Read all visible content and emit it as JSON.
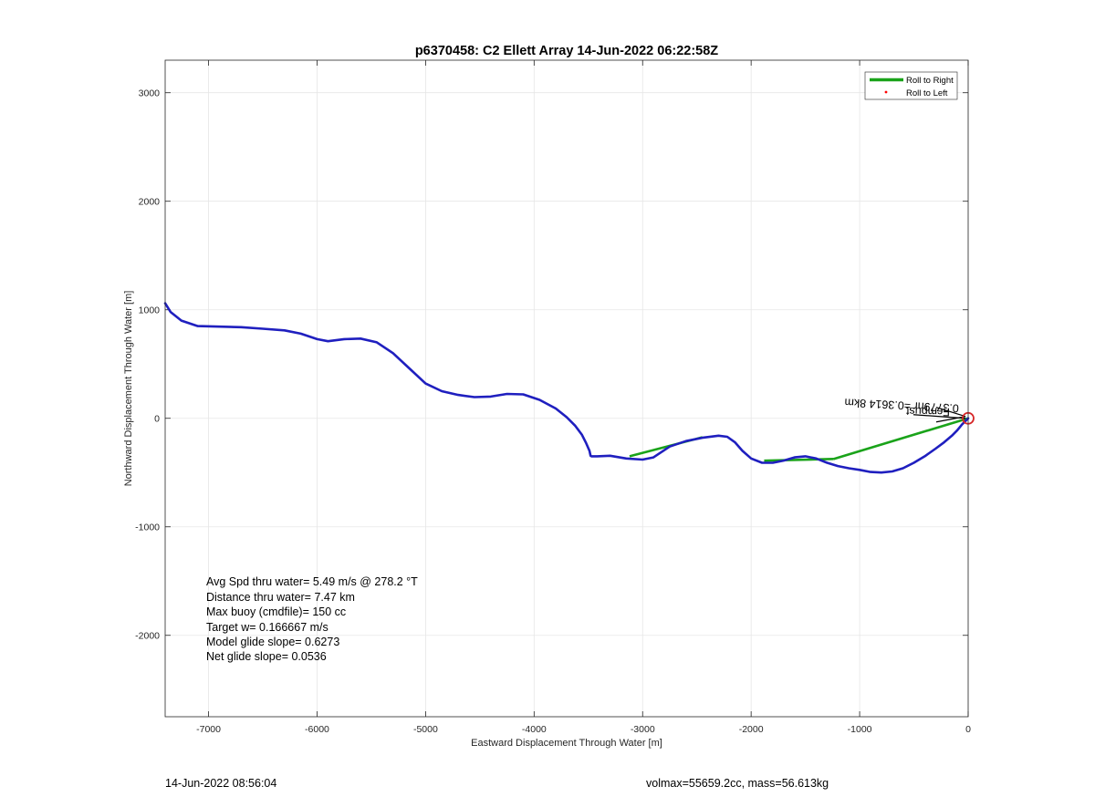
{
  "chart_data": {
    "type": "line",
    "title": "p6370458: C2 Ellett Array 14-Jun-2022 06:22:58Z",
    "xlabel": "Eastward Displacement Through Water [m]",
    "ylabel": "Northward Displacement Through Water [m]",
    "xlim": [
      -7400,
      0
    ],
    "ylim": [
      -2750,
      3300
    ],
    "xticks": [
      -7000,
      -6000,
      -5000,
      -4000,
      -3000,
      -2000,
      -1000,
      0
    ],
    "yticks": [
      -2000,
      -1000,
      0,
      1000,
      2000,
      3000
    ],
    "grid": true,
    "legend_position": "top-right",
    "legend": [
      {
        "label": "Roll to Right",
        "color": "#1aa31a",
        "marker": "line"
      },
      {
        "label": "Roll to Left",
        "color": "#ff0000",
        "marker": "dot"
      }
    ],
    "track": {
      "color": "#1f1fbf",
      "x": [
        -7400,
        -7350,
        -7250,
        -7100,
        -6900,
        -6700,
        -6500,
        -6300,
        -6150,
        -6000,
        -5900,
        -5750,
        -5600,
        -5450,
        -5300,
        -5150,
        -5000,
        -4850,
        -4700,
        -4550,
        -4400,
        -4250,
        -4100,
        -3950,
        -3800,
        -3700,
        -3620,
        -3560,
        -3520,
        -3490,
        -3480,
        -3470,
        -3420,
        -3300,
        -3150,
        -3000,
        -2900,
        -2750,
        -2600,
        -2450,
        -2300,
        -2220,
        -2150,
        -2080,
        -2000,
        -1900,
        -1800,
        -1700,
        -1600,
        -1500,
        -1400,
        -1300,
        -1200,
        -1100,
        -1000,
        -900,
        -800,
        -700,
        -600,
        -500,
        -400,
        -300,
        -220,
        -150,
        -100,
        -60,
        -30,
        -10,
        0
      ],
      "y": [
        1060,
        980,
        900,
        850,
        845,
        840,
        825,
        810,
        780,
        730,
        710,
        730,
        735,
        700,
        600,
        460,
        320,
        250,
        215,
        195,
        200,
        225,
        220,
        170,
        90,
        10,
        -70,
        -150,
        -230,
        -300,
        -345,
        -350,
        -350,
        -345,
        -370,
        -380,
        -360,
        -260,
        -210,
        -180,
        -160,
        -170,
        -220,
        -300,
        -370,
        -410,
        -410,
        -390,
        -360,
        -350,
        -370,
        -410,
        -440,
        -460,
        -475,
        -495,
        -500,
        -490,
        -460,
        -410,
        -350,
        -280,
        -220,
        -160,
        -110,
        -60,
        -30,
        -10,
        0
      ]
    },
    "roll_right_segments": [
      {
        "x": [
          -3120,
          -2450
        ],
        "y": [
          -350,
          -175
        ]
      },
      {
        "x": [
          -1880,
          -1240
        ],
        "y": [
          -390,
          -375
        ]
      },
      {
        "x": [
          -1240,
          0
        ],
        "y": [
          -375,
          0
        ]
      }
    ],
    "end_marker": {
      "x": 0,
      "y": 0,
      "color": "#d62728"
    },
    "arrow_label": "0.3779hr =0.3614 8km",
    "arrow_overlay_text": "Fcmpust",
    "stats": [
      "Avg Spd thru water=  5.49 m/s @ 278.2 °T",
      "Distance thru water=  7.47 km",
      "Max buoy (cmdfile)= 150 cc",
      "Target w= 0.166667 m/s",
      "Model glide slope= 0.6273",
      "Net glide slope= 0.0536"
    ]
  },
  "footer": {
    "timestamp": "14-Jun-2022 08:56:04",
    "summary": "volmax=55659.2cc, mass=56.613kg"
  }
}
